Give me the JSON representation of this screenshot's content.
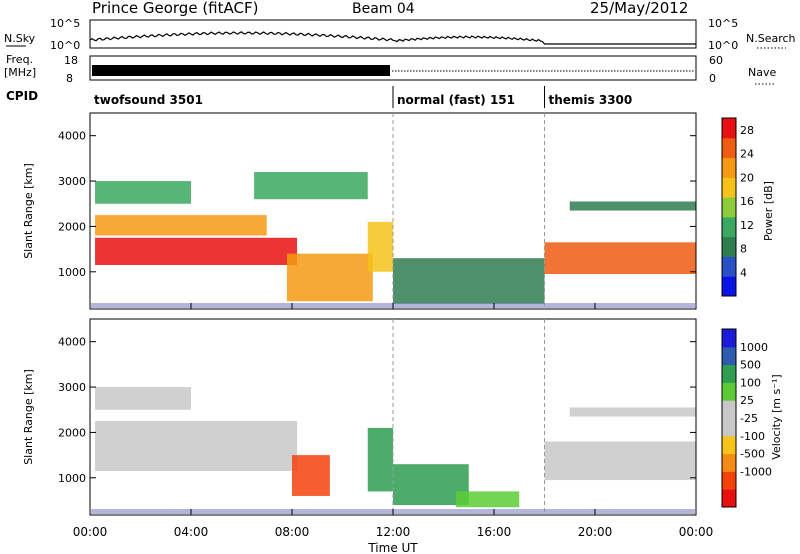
{
  "header": {
    "station": "Prince George (fitACF)",
    "beam": "Beam 04",
    "date": "25/May/2012"
  },
  "top_panels": {
    "nsky_label": "N.Sky",
    "nsky_ticks": [
      "10^5",
      "10^0"
    ],
    "nsearch_label": "N.Search",
    "nsearch_ticks": [
      "10^5",
      "10^0"
    ],
    "freq_label": "Freq.",
    "freq_unit": "[MHz]",
    "freq_ticks": [
      "18",
      "8"
    ],
    "nave_label": "Nave",
    "nave_ticks": [
      "60",
      "0"
    ],
    "cpid_label": "CPID",
    "cpid_segments": [
      {
        "label": "twofsound 3501",
        "start_hour": 0
      },
      {
        "label": "normal (fast) 151",
        "start_hour": 12
      },
      {
        "label": "themis 3300",
        "start_hour": 18
      }
    ]
  },
  "colors": {
    "power_scale": [
      "#0a14e6",
      "#2a50c8",
      "#2e7d4f",
      "#3aa860",
      "#8ccc3a",
      "#f5c21a",
      "#f59a12",
      "#f05c10",
      "#e81010"
    ],
    "velocity_scale": [
      "#e80f0f",
      "#f5420d",
      "#f58a16",
      "#f6c31a",
      "#c8c8c8",
      "#c8c8c8",
      "#5ccc36",
      "#2f9e50",
      "#2e5ab0",
      "#1a1ad8"
    ],
    "gs_gray": "#c8c8c8"
  },
  "chart_data": [
    {
      "type": "heatmap",
      "panel": "power",
      "ylabel": "Slant Range [km]",
      "xlabel": "Time UT",
      "x_ticks": [
        "00:00",
        "04:00",
        "08:00",
        "12:00",
        "16:00",
        "20:00",
        "00:00"
      ],
      "x_range_hours": [
        0,
        24
      ],
      "y_ticks": [
        "1000",
        "2000",
        "3000",
        "4000"
      ],
      "ylim": [
        180,
        4500
      ],
      "colorbar_label": "Power [dB]",
      "colorbar_ticks": [
        "4",
        "8",
        "12",
        "16",
        "20",
        "24",
        "28"
      ],
      "colorbar_range": [
        0,
        30
      ],
      "mode_change_hours": [
        12,
        18
      ],
      "bands": [
        {
          "t0": 0.2,
          "t1": 8.2,
          "r0": 1150,
          "r1": 1750,
          "level": 27
        },
        {
          "t0": 0.2,
          "t1": 7.0,
          "r0": 1800,
          "r1": 2250,
          "level": 20
        },
        {
          "t0": 0.2,
          "t1": 4.0,
          "r0": 2500,
          "r1": 3000,
          "level": 10
        },
        {
          "t0": 6.5,
          "t1": 11.0,
          "r0": 2600,
          "r1": 3200,
          "level": 10
        },
        {
          "t0": 7.8,
          "t1": 11.2,
          "r0": 350,
          "r1": 1400,
          "level": 20
        },
        {
          "t0": 11.0,
          "t1": 12.0,
          "r0": 1000,
          "r1": 2100,
          "level": 18
        },
        {
          "t0": 12.0,
          "t1": 18.0,
          "r0": 300,
          "r1": 1300,
          "level": 7
        },
        {
          "t0": 18.0,
          "t1": 24.0,
          "r0": 950,
          "r1": 1650,
          "level": 24
        },
        {
          "t0": 19.0,
          "t1": 24.0,
          "r0": 2350,
          "r1": 2550,
          "level": 7
        }
      ]
    },
    {
      "type": "heatmap",
      "panel": "velocity",
      "ylabel": "Slant Range [km]",
      "xlabel": "Time UT",
      "x_ticks": [
        "00:00",
        "04:00",
        "08:00",
        "12:00",
        "16:00",
        "20:00",
        "00:00"
      ],
      "x_range_hours": [
        0,
        24
      ],
      "y_ticks": [
        "1000",
        "2000",
        "3000",
        "4000"
      ],
      "ylim": [
        180,
        4500
      ],
      "colorbar_label": "Velocity [m s⁻¹]",
      "colorbar_ticks": [
        "1000",
        "500",
        "100",
        "25",
        "-25",
        "-100",
        "-500",
        "-1000"
      ],
      "mode_change_hours": [
        12,
        18
      ],
      "bands": [
        {
          "t0": 0.2,
          "t1": 8.2,
          "r0": 1150,
          "r1": 2250,
          "level": 0
        },
        {
          "t0": 0.2,
          "t1": 4.0,
          "r0": 2500,
          "r1": 3000,
          "level": 0
        },
        {
          "t0": 8.0,
          "t1": 9.5,
          "r0": 600,
          "r1": 1500,
          "level": -500
        },
        {
          "t0": 11.0,
          "t1": 12.0,
          "r0": 700,
          "r1": 2100,
          "level": 300
        },
        {
          "t0": 12.0,
          "t1": 15.0,
          "r0": 400,
          "r1": 1300,
          "level": 300
        },
        {
          "t0": 14.5,
          "t1": 17.0,
          "r0": 350,
          "r1": 700,
          "level": 90
        },
        {
          "t0": 18.0,
          "t1": 24.0,
          "r0": 950,
          "r1": 1800,
          "level": 0
        },
        {
          "t0": 19.0,
          "t1": 24.0,
          "r0": 2350,
          "r1": 2550,
          "level": 0
        }
      ]
    }
  ]
}
